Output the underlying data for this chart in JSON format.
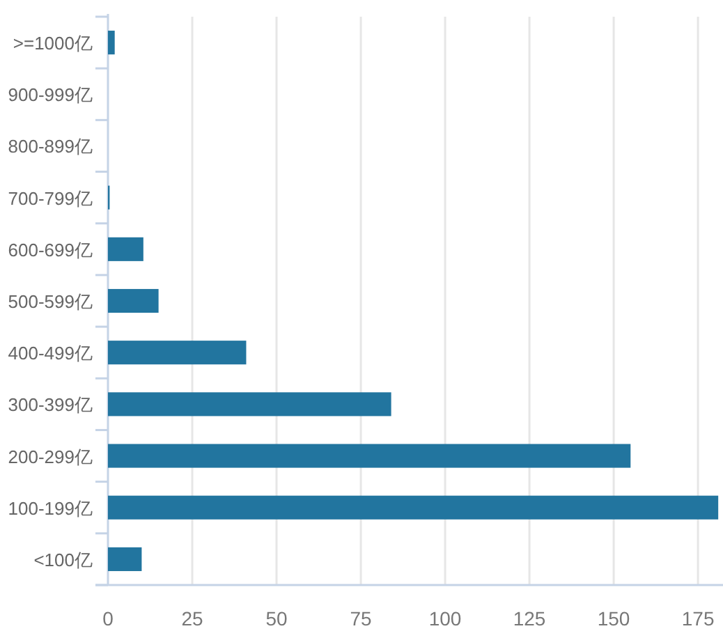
{
  "chart_data": {
    "type": "bar",
    "orientation": "horizontal",
    "categories": [
      ">=1000亿",
      "900-999亿",
      "800-899亿",
      "700-799亿",
      "600-699亿",
      "500-599亿",
      "400-499亿",
      "300-399亿",
      "200-299亿",
      "100-199亿",
      "<100亿"
    ],
    "values": [
      2,
      0,
      0,
      0.5,
      10.5,
      15,
      41,
      84,
      155,
      181,
      10
    ],
    "color": "#22759f",
    "xlim": [
      0,
      182
    ],
    "xticks": [
      0,
      25,
      50,
      75,
      100,
      125,
      150,
      175
    ],
    "grid": "x"
  }
}
